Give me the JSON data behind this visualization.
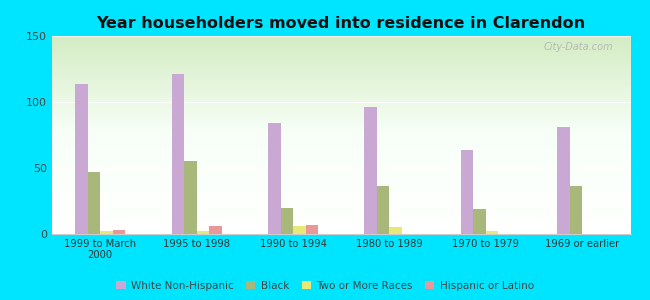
{
  "title": "Year householders moved into residence in Clarendon",
  "categories": [
    "1999 to March\n2000",
    "1995 to 1998",
    "1990 to 1994",
    "1980 to 1989",
    "1970 to 1979",
    "1969 or earlier"
  ],
  "series": {
    "White Non-Hispanic": [
      114,
      121,
      84,
      96,
      64,
      81
    ],
    "Black": [
      47,
      55,
      20,
      36,
      19,
      36
    ],
    "Two or More Races": [
      2,
      2,
      6,
      5,
      2,
      0
    ],
    "Hispanic or Latino": [
      3,
      6,
      7,
      0,
      0,
      0
    ]
  },
  "colors": {
    "White Non-Hispanic": "#c9a8d4",
    "Black": "#a8b87a",
    "Two or More Races": "#e8e878",
    "Hispanic or Latino": "#e89898"
  },
  "ylim": [
    0,
    150
  ],
  "yticks": [
    0,
    50,
    100,
    150
  ],
  "background_color": "#00e5ff",
  "watermark": "City-Data.com",
  "bar_width": 0.13,
  "legend_labels": [
    "White Non-Hispanic",
    "Black",
    "Two or More Races",
    "Hispanic or Latino"
  ]
}
